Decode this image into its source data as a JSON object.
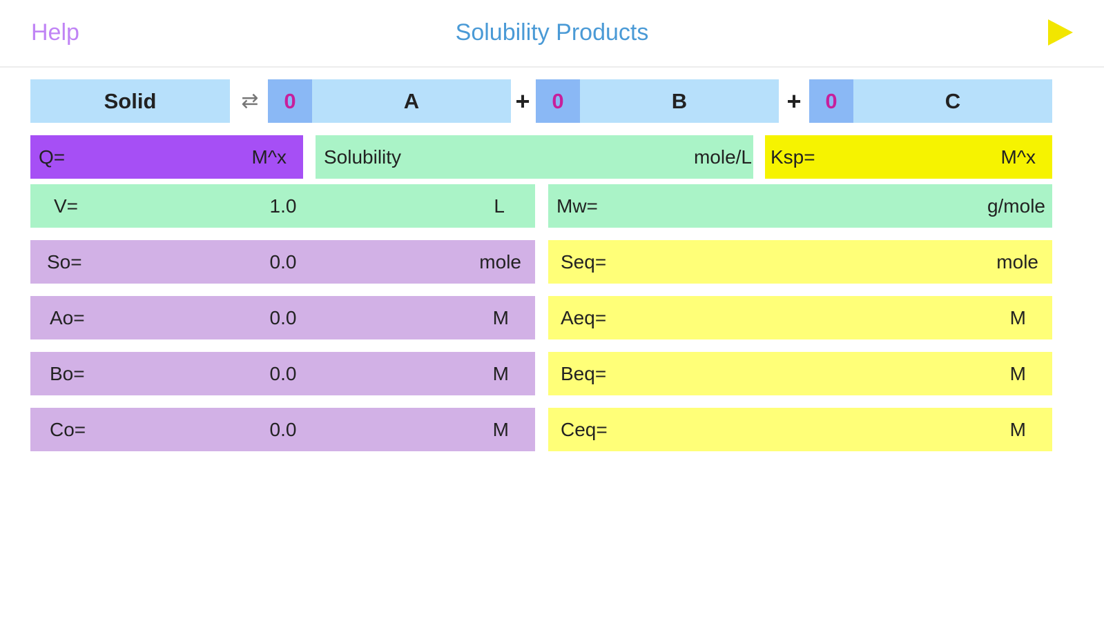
{
  "nav": {
    "help_label": "Help",
    "title": "Solubility Products",
    "play_icon": "play-icon"
  },
  "reaction": {
    "solid_label": "Solid",
    "arrow_symbol": "⇄",
    "plus_symbol": "+",
    "products": [
      {
        "coefficient": "0",
        "label": "A"
      },
      {
        "coefficient": "0",
        "label": "B"
      },
      {
        "coefficient": "0",
        "label": "C"
      }
    ]
  },
  "summary": {
    "q_label": "Q=",
    "q_unit": "M^x",
    "solubility_label": "Solubility",
    "solubility_unit": "mole/L",
    "ksp_label": "Ksp=",
    "ksp_unit": "M^x"
  },
  "left_rows": [
    {
      "label": "V=",
      "value": "1.0",
      "unit": "L"
    },
    {
      "label": "So=",
      "value": "0.0",
      "unit": "mole"
    },
    {
      "label": "Ao=",
      "value": "0.0",
      "unit": "M"
    },
    {
      "label": "Bo=",
      "value": "0.0",
      "unit": "M"
    },
    {
      "label": "Co=",
      "value": "0.0",
      "unit": "M"
    }
  ],
  "right_rows": [
    {
      "label": "Mw=",
      "unit": "g/mole"
    },
    {
      "label": "Seq=",
      "unit": "mole"
    },
    {
      "label": "Aeq=",
      "unit": "M"
    },
    {
      "label": "Beq=",
      "unit": "M"
    },
    {
      "label": "Ceq=",
      "unit": "M"
    }
  ],
  "colors": {
    "accent_blue": "#4a9ad6",
    "help_purple": "#c084f5",
    "coefficient_magenta": "#c71f9c",
    "play_yellow": "#f2e600"
  }
}
